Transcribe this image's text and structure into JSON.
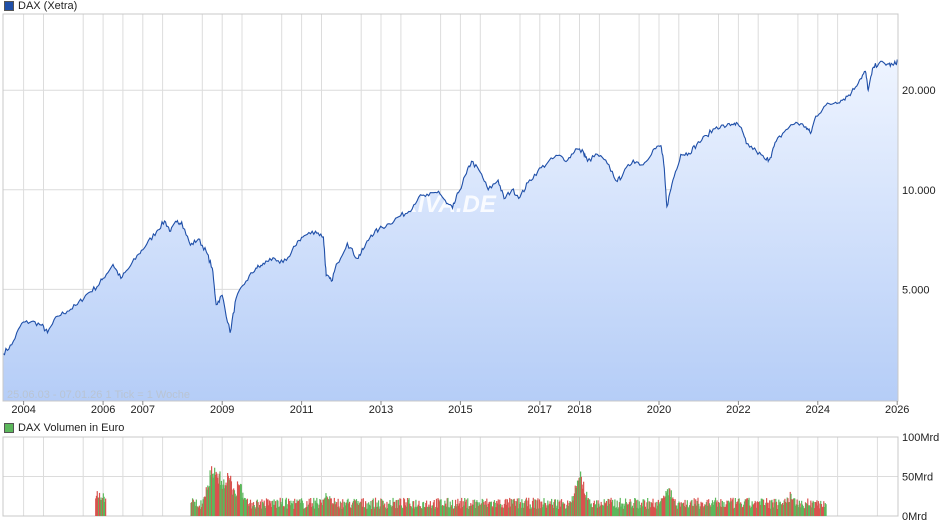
{
  "chart_data": [
    {
      "type": "area",
      "legend": "DAX (Xetra)",
      "series_color": "#1f4fa8",
      "fill_top": "#eef4ff",
      "fill_bottom": "#b5cdf7",
      "y_scale": "log",
      "ylim": [
        2300,
        34000
      ],
      "y_ticks": [
        {
          "value": 5000,
          "label": "5.000"
        },
        {
          "value": 10000,
          "label": "10.000"
        },
        {
          "value": 20000,
          "label": "20.000"
        }
      ],
      "xlim": [
        2003.48,
        2026.02
      ],
      "x_ticks": [
        {
          "value": 2004,
          "label": "2004"
        },
        {
          "value": 2006,
          "label": "2006"
        },
        {
          "value": 2007,
          "label": "2007"
        },
        {
          "value": 2009,
          "label": "2009"
        },
        {
          "value": 2011,
          "label": "2011"
        },
        {
          "value": 2013,
          "label": "2013"
        },
        {
          "value": 2015,
          "label": "2015"
        },
        {
          "value": 2017,
          "label": "2017"
        },
        {
          "value": 2018,
          "label": "2018"
        },
        {
          "value": 2020,
          "label": "2020"
        },
        {
          "value": 2022,
          "label": "2022"
        },
        {
          "value": 2024,
          "label": "2024"
        },
        {
          "value": 2026,
          "label": "2026"
        }
      ],
      "grid": true,
      "watermark": "ARIVA.DE",
      "info_text": "25.06.03 - 07.01.26    1 Tick = 1 Woche",
      "points": [
        [
          2003.48,
          3200
        ],
        [
          2003.7,
          3400
        ],
        [
          2003.95,
          3950
        ],
        [
          2004.2,
          4000
        ],
        [
          2004.45,
          3900
        ],
        [
          2004.6,
          3700
        ],
        [
          2004.85,
          4150
        ],
        [
          2005.1,
          4300
        ],
        [
          2005.35,
          4500
        ],
        [
          2005.6,
          4850
        ],
        [
          2005.85,
          5100
        ],
        [
          2006.0,
          5400
        ],
        [
          2006.25,
          5950
        ],
        [
          2006.45,
          5400
        ],
        [
          2006.65,
          5800
        ],
        [
          2006.9,
          6400
        ],
        [
          2007.1,
          6850
        ],
        [
          2007.35,
          7500
        ],
        [
          2007.55,
          8050
        ],
        [
          2007.7,
          7500
        ],
        [
          2007.85,
          8000
        ],
        [
          2007.98,
          8000
        ],
        [
          2008.2,
          6800
        ],
        [
          2008.4,
          7100
        ],
        [
          2008.6,
          6500
        ],
        [
          2008.75,
          5800
        ],
        [
          2008.85,
          4500
        ],
        [
          2009.0,
          4800
        ],
        [
          2009.2,
          3700
        ],
        [
          2009.35,
          4700
        ],
        [
          2009.6,
          5300
        ],
        [
          2009.85,
          5800
        ],
        [
          2010.0,
          5900
        ],
        [
          2010.2,
          6200
        ],
        [
          2010.45,
          6000
        ],
        [
          2010.7,
          6300
        ],
        [
          2010.9,
          7000
        ],
        [
          2011.1,
          7300
        ],
        [
          2011.35,
          7500
        ],
        [
          2011.55,
          7200
        ],
        [
          2011.62,
          5500
        ],
        [
          2011.75,
          5300
        ],
        [
          2011.9,
          6000
        ],
        [
          2012.15,
          6900
        ],
        [
          2012.4,
          6200
        ],
        [
          2012.55,
          6600
        ],
        [
          2012.75,
          7300
        ],
        [
          2012.95,
          7600
        ],
        [
          2013.2,
          7900
        ],
        [
          2013.45,
          8300
        ],
        [
          2013.7,
          8600
        ],
        [
          2013.95,
          9500
        ],
        [
          2014.2,
          9600
        ],
        [
          2014.45,
          9900
        ],
        [
          2014.65,
          9100
        ],
        [
          2014.8,
          8800
        ],
        [
          2014.95,
          9800
        ],
        [
          2015.15,
          11200
        ],
        [
          2015.28,
          12200
        ],
        [
          2015.5,
          11300
        ],
        [
          2015.7,
          10000
        ],
        [
          2015.95,
          10700
        ],
        [
          2016.1,
          9400
        ],
        [
          2016.3,
          10000
        ],
        [
          2016.5,
          9500
        ],
        [
          2016.7,
          10500
        ],
        [
          2016.95,
          11400
        ],
        [
          2017.2,
          12100
        ],
        [
          2017.45,
          12700
        ],
        [
          2017.7,
          12300
        ],
        [
          2017.9,
          13300
        ],
        [
          2018.1,
          13000
        ],
        [
          2018.2,
          12200
        ],
        [
          2018.45,
          12800
        ],
        [
          2018.7,
          12000
        ],
        [
          2018.95,
          10600
        ],
        [
          2019.1,
          11200
        ],
        [
          2019.35,
          12300
        ],
        [
          2019.6,
          11900
        ],
        [
          2019.85,
          13200
        ],
        [
          2020.05,
          13600
        ],
        [
          2020.12,
          12000
        ],
        [
          2020.2,
          8900
        ],
        [
          2020.35,
          10700
        ],
        [
          2020.55,
          12800
        ],
        [
          2020.75,
          12900
        ],
        [
          2020.95,
          13700
        ],
        [
          2021.2,
          14600
        ],
        [
          2021.45,
          15500
        ],
        [
          2021.7,
          15600
        ],
        [
          2021.9,
          15900
        ],
        [
          2022.05,
          15500
        ],
        [
          2022.2,
          13800
        ],
        [
          2022.45,
          13100
        ],
        [
          2022.7,
          12300
        ],
        [
          2022.8,
          12500
        ],
        [
          2022.95,
          14000
        ],
        [
          2023.2,
          15200
        ],
        [
          2023.45,
          16000
        ],
        [
          2023.7,
          15500
        ],
        [
          2023.82,
          14800
        ],
        [
          2023.95,
          16700
        ],
        [
          2024.2,
          18000
        ],
        [
          2024.45,
          18400
        ],
        [
          2024.65,
          18800
        ],
        [
          2024.85,
          19700
        ],
        [
          2025.05,
          21500
        ],
        [
          2025.2,
          22800
        ],
        [
          2025.27,
          20000
        ],
        [
          2025.4,
          23500
        ],
        [
          2025.55,
          24200
        ],
        [
          2025.75,
          24000
        ],
        [
          2025.9,
          23800
        ],
        [
          2026.02,
          24600
        ]
      ]
    },
    {
      "type": "bar",
      "legend": "DAX Volumen in Euro",
      "up_color": "#5cb85c",
      "down_color": "#d9534f",
      "ylim": [
        0,
        100
      ],
      "y_ticks": [
        {
          "value": 0,
          "label": "0Mrd"
        },
        {
          "value": 50,
          "label": "50Mrd"
        },
        {
          "value": 100,
          "label": "100Mrd"
        }
      ],
      "segments": [
        {
          "from": 2005.8,
          "to": 2006.06,
          "base": 22,
          "spikes": [
            [
              2006.0,
              30
            ]
          ]
        },
        {
          "from": 2008.2,
          "to": 2024.2,
          "base": 16,
          "spikes": [
            [
              2008.75,
              78
            ],
            [
              2008.85,
              55
            ],
            [
              2008.95,
              62
            ],
            [
              2009.15,
              60
            ],
            [
              2009.4,
              50
            ],
            [
              2011.62,
              32
            ],
            [
              2018.0,
              60
            ],
            [
              2020.2,
              45
            ],
            [
              2023.3,
              32
            ]
          ]
        }
      ]
    }
  ]
}
